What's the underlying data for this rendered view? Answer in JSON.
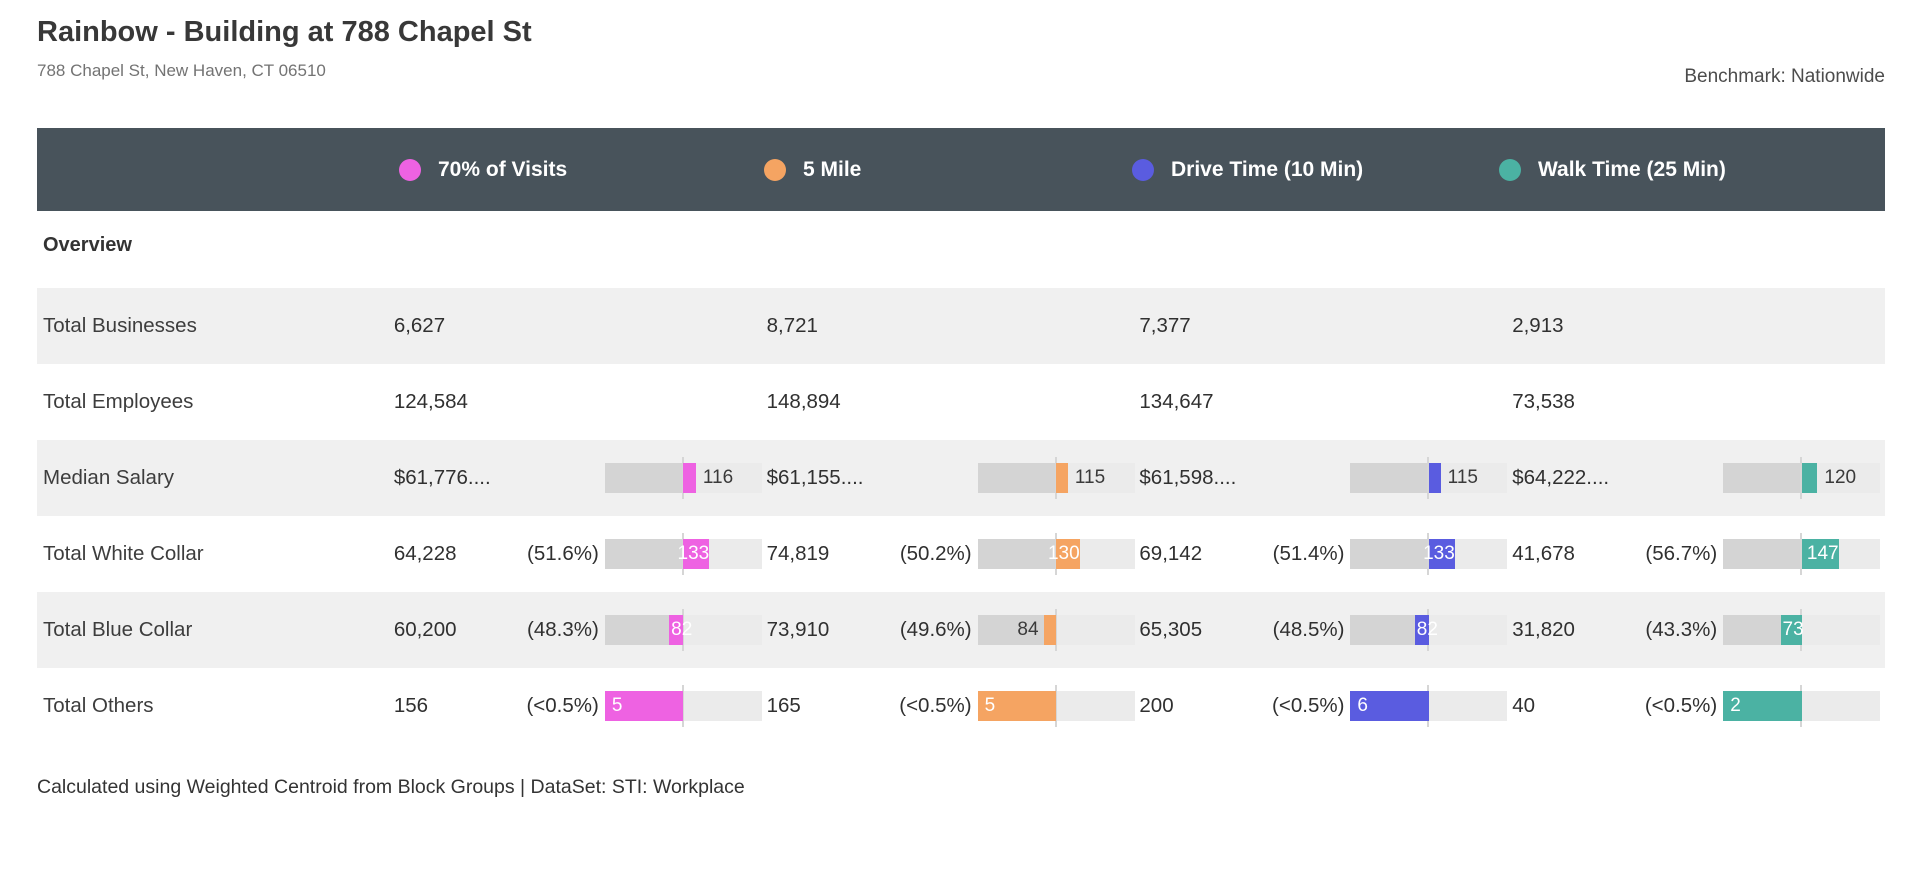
{
  "header": {
    "title": "Rainbow - Building at 788 Chapel St",
    "subtitle": "788 Chapel St, New Haven, CT 06510",
    "benchmark": "Benchmark: Nationwide"
  },
  "legend": {
    "items": [
      {
        "label": "70% of Visits",
        "color": "#ee62e2"
      },
      {
        "label": "5 Mile",
        "color": "#f5a462"
      },
      {
        "label": "Drive Time (10 Min)",
        "color": "#5a5ce0"
      },
      {
        "label": "Walk Time (25 Min)",
        "color": "#4bb2a3"
      }
    ]
  },
  "section": {
    "title": "Overview"
  },
  "table": {
    "rows": [
      {
        "label": "Total Businesses",
        "cells": [
          {
            "value": "6,627"
          },
          {
            "value": "8,721"
          },
          {
            "value": "7,377"
          },
          {
            "value": "2,913"
          }
        ]
      },
      {
        "label": "Total Employees",
        "cells": [
          {
            "value": "124,584"
          },
          {
            "value": "148,894"
          },
          {
            "value": "134,647"
          },
          {
            "value": "73,538"
          }
        ]
      },
      {
        "label": "Median Salary",
        "cells": [
          {
            "value": "$61,776....",
            "index": 116,
            "label_style": "after"
          },
          {
            "value": "$61,155....",
            "index": 115,
            "label_style": "after"
          },
          {
            "value": "$61,598....",
            "index": 115,
            "label_style": "after"
          },
          {
            "value": "$64,222....",
            "index": 120,
            "label_style": "after"
          }
        ]
      },
      {
        "label": "Total White Collar",
        "cells": [
          {
            "value": "64,228",
            "pct": "(51.6%)",
            "index": 133,
            "label_style": "end"
          },
          {
            "value": "74,819",
            "pct": "(50.2%)",
            "index": 130,
            "label_style": "end"
          },
          {
            "value": "69,142",
            "pct": "(51.4%)",
            "index": 133,
            "label_style": "end"
          },
          {
            "value": "41,678",
            "pct": "(56.7%)",
            "index": 147,
            "label_style": "end"
          }
        ]
      },
      {
        "label": "Total Blue Collar",
        "cells": [
          {
            "value": "60,200",
            "pct": "(48.3%)",
            "index": 82,
            "label_style": "start"
          },
          {
            "value": "73,910",
            "pct": "(49.6%)",
            "index": 84,
            "label_style": "before"
          },
          {
            "value": "65,305",
            "pct": "(48.5%)",
            "index": 82,
            "label_style": "start"
          },
          {
            "value": "31,820",
            "pct": "(43.3%)",
            "index": 73,
            "label_style": "start"
          }
        ]
      },
      {
        "label": "Total Others",
        "cells": [
          {
            "value": "156",
            "pct": "(<0.5%)",
            "index": 5,
            "label_style": "inside"
          },
          {
            "value": "165",
            "pct": "(<0.5%)",
            "index": 5,
            "label_style": "inside"
          },
          {
            "value": "200",
            "pct": "(<0.5%)",
            "index": 6,
            "label_style": "inside"
          },
          {
            "value": "40",
            "pct": "(<0.5%)",
            "index": 2,
            "label_style": "inside"
          }
        ]
      }
    ]
  },
  "footer": {
    "note": "Calculated using Weighted Centroid from Block Groups | DataSet: STI: Workplace"
  },
  "colors": {
    "header_bar": "#48535b",
    "row_band": "#f0f0f0",
    "bar_track": "#ebebeb",
    "bar_fill": "#d4d4d4",
    "benchmark_tick": "#d6d6d6"
  },
  "chart_data": {
    "type": "table",
    "title": "Overview",
    "columns": [
      "Metric",
      "70% of Visits",
      "5 Mile",
      "Drive Time (10 Min)",
      "Walk Time (25 Min)"
    ],
    "benchmark": "Nationwide",
    "benchmark_index_scale": [
      0,
      200
    ],
    "rows": [
      {
        "metric": "Total Businesses",
        "values": [
          "6,627",
          "8,721",
          "7,377",
          "2,913"
        ]
      },
      {
        "metric": "Total Employees",
        "values": [
          "124,584",
          "148,894",
          "134,647",
          "73,538"
        ]
      },
      {
        "metric": "Median Salary",
        "values": [
          "$61,776....",
          "$61,155....",
          "$61,598....",
          "$64,222...."
        ],
        "benchmark_indices": [
          116,
          115,
          115,
          120
        ]
      },
      {
        "metric": "Total White Collar",
        "values": [
          "64,228",
          "74,819",
          "69,142",
          "41,678"
        ],
        "percents": [
          "51.6%",
          "50.2%",
          "51.4%",
          "56.7%"
        ],
        "benchmark_indices": [
          133,
          130,
          133,
          147
        ]
      },
      {
        "metric": "Total Blue Collar",
        "values": [
          "60,200",
          "73,910",
          "65,305",
          "31,820"
        ],
        "percents": [
          "48.3%",
          "49.6%",
          "48.5%",
          "43.3%"
        ],
        "benchmark_indices": [
          82,
          84,
          82,
          73
        ]
      },
      {
        "metric": "Total Others",
        "values": [
          "156",
          "165",
          "200",
          "40"
        ],
        "percents": [
          "<0.5%",
          "<0.5%",
          "<0.5%",
          "<0.5%"
        ],
        "benchmark_indices": [
          5,
          5,
          6,
          2
        ]
      }
    ]
  }
}
